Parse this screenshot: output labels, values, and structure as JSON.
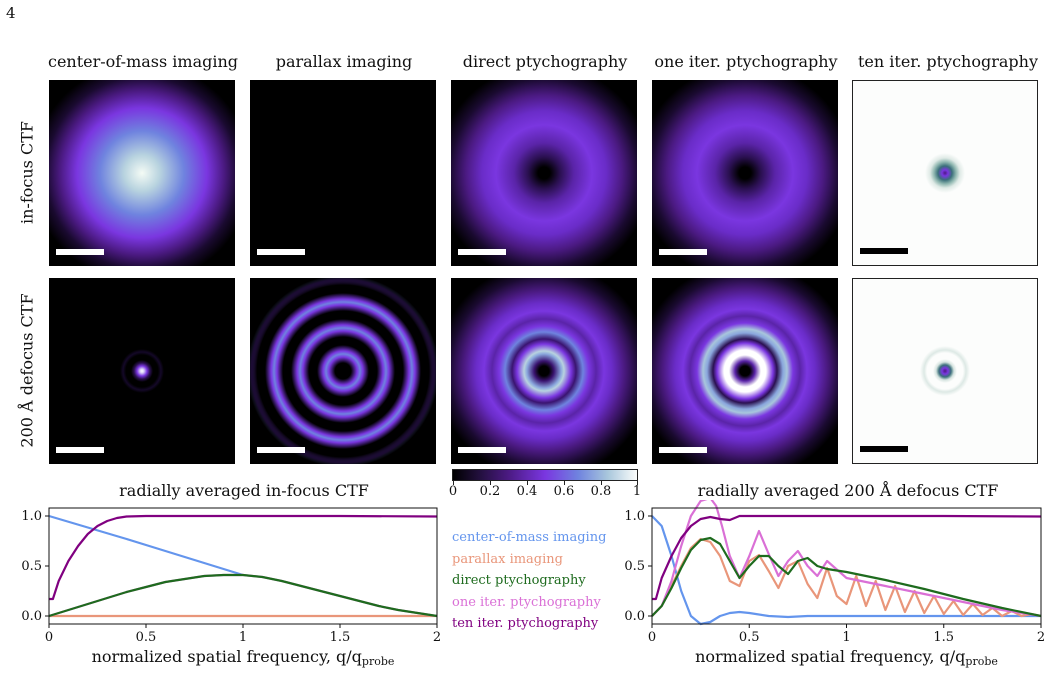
{
  "page_number": "4",
  "columns": [
    "center-of-mass imaging",
    "parallax imaging",
    "direct ptychography",
    "one iter. ptychography",
    "ten iter. ptychography"
  ],
  "rows": [
    "in-focus CTF",
    "200 Å defocus CTF"
  ],
  "colorbar": {
    "ticks": [
      "0",
      "0.2",
      "0.4",
      "0.6",
      "0.8",
      "1"
    ],
    "colors": [
      "#000000",
      "#4b1a82",
      "#7a36e0",
      "#6f83df",
      "#a8c6dc",
      "#fbfdfb"
    ]
  },
  "legend": [
    {
      "label": "center-of-mass imaging",
      "color": "#6495ed"
    },
    {
      "label": "parallax imaging",
      "color": "#e9967a"
    },
    {
      "label": "direct ptychography",
      "color": "#1e6b1e"
    },
    {
      "label": "one iter. ptychography",
      "color": "#da70d6"
    },
    {
      "label": "ten iter. ptychography",
      "color": "#800080"
    }
  ],
  "chart_data": [
    {
      "type": "line",
      "title": "radially averaged in-focus CTF",
      "xlabel_main": "normalized spatial frequency, q/q",
      "xlabel_sub": "probe",
      "xlim": [
        0,
        2
      ],
      "ylim": [
        -0.08,
        1.08
      ],
      "xticks": [
        0,
        0.5,
        1,
        1.5,
        2
      ],
      "xtick_labels": [
        "0",
        "0.5",
        "1",
        "1.5",
        "2"
      ],
      "yticks": [
        0,
        0.5,
        1
      ],
      "ytick_labels": [
        "0.0",
        "0.5",
        "1.0"
      ],
      "series": [
        {
          "name": "center-of-mass imaging",
          "color": "#6495ed",
          "x": [
            0,
            0.2,
            0.4,
            0.6,
            0.8,
            1.0
          ],
          "y": [
            1.0,
            0.885,
            0.77,
            0.65,
            0.53,
            0.41
          ]
        },
        {
          "name": "parallax imaging",
          "color": "#e9967a",
          "x": [
            0,
            0.5,
            1.0,
            1.5,
            2.0
          ],
          "y": [
            0,
            0,
            0,
            0,
            0
          ]
        },
        {
          "name": "one iter. ptychography",
          "color": "#da70d6",
          "x": [
            0,
            0.1,
            0.2,
            0.3,
            0.4,
            0.5,
            0.6,
            0.7,
            0.8,
            0.9,
            1.0,
            1.1,
            1.2,
            1.3,
            1.4,
            1.5,
            1.6,
            1.7,
            1.8,
            1.9,
            2.0
          ],
          "y": [
            0,
            0.06,
            0.12,
            0.18,
            0.24,
            0.29,
            0.34,
            0.37,
            0.4,
            0.41,
            0.41,
            0.39,
            0.35,
            0.3,
            0.25,
            0.2,
            0.15,
            0.1,
            0.06,
            0.03,
            0
          ]
        },
        {
          "name": "direct ptychography",
          "color": "#1e6b1e",
          "x": [
            0,
            0.1,
            0.2,
            0.3,
            0.4,
            0.5,
            0.6,
            0.7,
            0.8,
            0.9,
            1.0,
            1.1,
            1.2,
            1.3,
            1.4,
            1.5,
            1.6,
            1.7,
            1.8,
            1.9,
            2.0
          ],
          "y": [
            0,
            0.06,
            0.12,
            0.18,
            0.24,
            0.29,
            0.34,
            0.37,
            0.4,
            0.41,
            0.41,
            0.39,
            0.35,
            0.3,
            0.25,
            0.2,
            0.15,
            0.1,
            0.06,
            0.03,
            0
          ]
        },
        {
          "name": "ten iter. ptychography",
          "color": "#800080",
          "x": [
            0,
            0.02,
            0.05,
            0.1,
            0.15,
            0.2,
            0.25,
            0.3,
            0.35,
            0.4,
            0.5,
            0.6,
            0.8,
            1.0,
            1.5,
            2.0
          ],
          "y": [
            0.17,
            0.17,
            0.35,
            0.55,
            0.7,
            0.82,
            0.9,
            0.95,
            0.98,
            0.995,
            1.0,
            1.0,
            1.0,
            1.0,
            1.0,
            0.995
          ]
        }
      ]
    },
    {
      "type": "line",
      "title": "radially averaged 200 Å defocus CTF",
      "xlabel_main": "normalized spatial frequency, q/q",
      "xlabel_sub": "probe",
      "xlim": [
        0,
        2
      ],
      "ylim": [
        -0.08,
        1.08
      ],
      "xticks": [
        0,
        0.5,
        1,
        1.5,
        2
      ],
      "xtick_labels": [
        "0",
        "0.5",
        "1",
        "1.5",
        "2"
      ],
      "yticks": [
        0,
        0.5,
        1
      ],
      "ytick_labels": [
        "0.0",
        "0.5",
        "1.0"
      ],
      "series": [
        {
          "name": "center-of-mass imaging",
          "color": "#6495ed",
          "x": [
            0,
            0.05,
            0.1,
            0.15,
            0.2,
            0.25,
            0.3,
            0.35,
            0.4,
            0.45,
            0.5,
            0.6,
            0.7,
            0.8,
            1.0,
            1.2,
            1.5,
            1.8,
            2.0
          ],
          "y": [
            1.0,
            0.9,
            0.6,
            0.25,
            0.0,
            -0.08,
            -0.06,
            0.0,
            0.03,
            0.04,
            0.03,
            0.0,
            -0.01,
            0.0,
            0.0,
            0.0,
            0.0,
            0.0,
            0.0
          ]
        },
        {
          "name": "parallax imaging",
          "color": "#e9967a",
          "x": [
            0,
            0.05,
            0.1,
            0.15,
            0.2,
            0.25,
            0.3,
            0.35,
            0.4,
            0.45,
            0.5,
            0.55,
            0.6,
            0.65,
            0.7,
            0.75,
            0.8,
            0.85,
            0.9,
            0.95,
            1.0,
            1.05,
            1.1,
            1.15,
            1.2,
            1.25,
            1.3,
            1.35,
            1.4,
            1.45,
            1.5,
            1.55,
            1.6,
            1.65,
            1.7,
            1.75,
            1.8,
            1.85,
            1.9,
            1.95,
            2.0
          ],
          "y": [
            0,
            0.1,
            0.3,
            0.5,
            0.68,
            0.77,
            0.74,
            0.6,
            0.35,
            0.3,
            0.55,
            0.61,
            0.45,
            0.28,
            0.5,
            0.55,
            0.32,
            0.18,
            0.48,
            0.2,
            0.12,
            0.4,
            0.1,
            0.35,
            0.06,
            0.3,
            0.04,
            0.25,
            0.03,
            0.2,
            0.02,
            0.15,
            0.01,
            0.12,
            0.01,
            0.08,
            0.0,
            0.05,
            0.0,
            0.02,
            0.0
          ]
        },
        {
          "name": "one iter. ptychography",
          "color": "#da70d6",
          "x": [
            0,
            0.05,
            0.1,
            0.15,
            0.2,
            0.25,
            0.3,
            0.33,
            0.36,
            0.4,
            0.45,
            0.5,
            0.55,
            0.6,
            0.65,
            0.7,
            0.75,
            0.8,
            0.85,
            0.9,
            1.0,
            1.2,
            1.4,
            1.6,
            1.8,
            2.0
          ],
          "y": [
            0,
            0.1,
            0.35,
            0.7,
            1.0,
            1.15,
            1.18,
            1.1,
            0.9,
            0.6,
            0.38,
            0.6,
            0.85,
            0.62,
            0.4,
            0.55,
            0.65,
            0.5,
            0.4,
            0.55,
            0.38,
            0.3,
            0.22,
            0.14,
            0.06,
            0.0
          ]
        },
        {
          "name": "direct ptychography",
          "color": "#1e6b1e",
          "x": [
            0,
            0.05,
            0.1,
            0.15,
            0.2,
            0.25,
            0.3,
            0.35,
            0.4,
            0.45,
            0.5,
            0.55,
            0.6,
            0.65,
            0.7,
            0.75,
            0.8,
            0.85,
            0.9,
            1.0,
            1.2,
            1.4,
            1.6,
            1.8,
            2.0
          ],
          "y": [
            0,
            0.1,
            0.28,
            0.48,
            0.66,
            0.76,
            0.78,
            0.72,
            0.55,
            0.38,
            0.5,
            0.6,
            0.6,
            0.5,
            0.42,
            0.55,
            0.58,
            0.5,
            0.47,
            0.44,
            0.36,
            0.27,
            0.17,
            0.08,
            0.0
          ]
        },
        {
          "name": "ten iter. ptychography",
          "color": "#800080",
          "x": [
            0,
            0.02,
            0.05,
            0.1,
            0.15,
            0.2,
            0.25,
            0.3,
            0.35,
            0.4,
            0.45,
            0.5,
            0.6,
            0.8,
            1.0,
            1.5,
            2.0
          ],
          "y": [
            0.17,
            0.17,
            0.38,
            0.6,
            0.78,
            0.9,
            0.97,
            0.99,
            0.97,
            0.96,
            1.0,
            1.0,
            1.0,
            1.0,
            1.0,
            1.0,
            0.995
          ]
        }
      ]
    }
  ]
}
